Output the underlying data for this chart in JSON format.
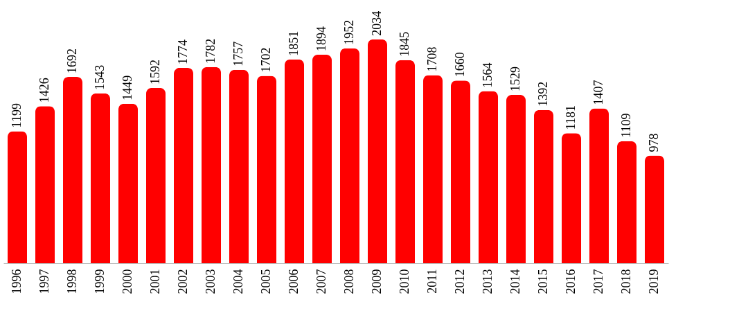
{
  "chart_data": {
    "type": "bar",
    "categories": [
      "1996",
      "1997",
      "1998",
      "1999",
      "2000",
      "2001",
      "2002",
      "2003",
      "2004",
      "2005",
      "2006",
      "2007",
      "2008",
      "2009",
      "2010",
      "2011",
      "2012",
      "2013",
      "2014",
      "2015",
      "2016",
      "2017",
      "2018",
      "2019"
    ],
    "values": [
      1199,
      1426,
      1692,
      1543,
      1449,
      1592,
      1774,
      1782,
      1757,
      1702,
      1851,
      1894,
      1952,
      2034,
      1845,
      1708,
      1660,
      1564,
      1529,
      1392,
      1181,
      1407,
      1109,
      978
    ],
    "color": "#ff0000",
    "data_labels": true
  }
}
